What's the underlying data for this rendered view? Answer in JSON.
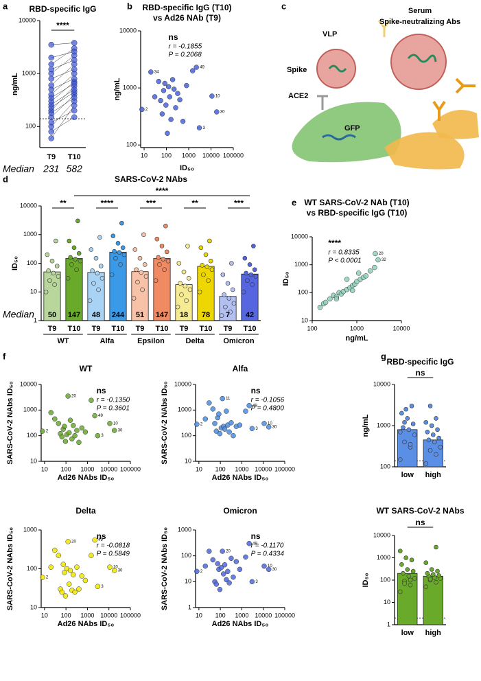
{
  "illustration": {
    "panel": "c",
    "serum": "Serum",
    "abs": "Spike-neutralizing Abs",
    "vlp": "VLP",
    "spike": "Spike",
    "ace2": "ACE2",
    "gfp": "GFP"
  },
  "chart_data": [
    {
      "panel": "a",
      "type": "paired",
      "title": "RBD-specific IgG",
      "ylabel": "ng/mL",
      "yscale": "log",
      "ylim": [
        40,
        10000
      ],
      "yticks": [
        100,
        1000,
        10000
      ],
      "categories": [
        "T9",
        "T10"
      ],
      "color": "#3d55d1",
      "threshold": 140,
      "values": [
        [
          60,
          80,
          100,
          120,
          150,
          180,
          200,
          230,
          260,
          300,
          350,
          400,
          500,
          600,
          800,
          1000,
          1200,
          1500,
          2000,
          3500
        ],
        [
          250,
          150,
          300,
          200,
          400,
          350,
          580,
          450,
          500,
          700,
          650,
          1000,
          800,
          1500,
          1200,
          2200,
          1800,
          3000,
          2600,
          3800
        ]
      ],
      "comparisons": [
        {
          "label": "****",
          "between": [
            0,
            1
          ]
        }
      ],
      "median_label": "Median",
      "medians": [
        231,
        582
      ]
    },
    {
      "panel": "b",
      "type": "scatter",
      "title": [
        "RBD-specific IgG (T10)",
        "vs Ad26 NAb (T9)"
      ],
      "xlabel": "ID₅₀",
      "ylabel": "ng/mL",
      "xscale": "log",
      "yscale": "log",
      "xlim": [
        7,
        100000
      ],
      "ylim": [
        90,
        10000
      ],
      "xticks": [
        10,
        100,
        1000,
        10000,
        100000
      ],
      "yticks": [
        100,
        1000,
        10000
      ],
      "color": "#4a63d8",
      "stat": "ns",
      "r_text": "r = -0.1855",
      "p_text": "P = 0.2068",
      "x": [
        8,
        20,
        30,
        45,
        55,
        65,
        75,
        85,
        95,
        110,
        125,
        140,
        160,
        190,
        220,
        260,
        320,
        400,
        550,
        800,
        1500,
        2200,
        3000,
        11000,
        18000
      ],
      "y": [
        420,
        1900,
        700,
        1300,
        600,
        350,
        900,
        1200,
        500,
        160,
        1050,
        700,
        280,
        1400,
        950,
        450,
        800,
        620,
        260,
        1100,
        2000,
        2300,
        200,
        720,
        380
      ],
      "labels": [
        "2",
        "34",
        null,
        null,
        null,
        null,
        null,
        null,
        null,
        null,
        null,
        null,
        null,
        null,
        null,
        null,
        null,
        null,
        null,
        null,
        null,
        "49",
        "3",
        "10",
        "30"
      ]
    },
    {
      "panel": "d",
      "type": "bar",
      "title": "SARS-CoV-2 NAbs",
      "ylabel": "ID₅₀",
      "yscale": "log",
      "ylim": [
        1,
        10000
      ],
      "yticks": [
        1,
        10,
        100,
        1000,
        10000
      ],
      "categories": [
        "T9",
        "T10",
        "T9",
        "T10",
        "T9",
        "T10",
        "T9",
        "T10",
        "T9",
        "T10"
      ],
      "groups": [
        "WT",
        "Alfa",
        "Epsilon",
        "Delta",
        "Omicron"
      ],
      "values": [
        50,
        147,
        48,
        244,
        51,
        147,
        18,
        78,
        7,
        42
      ],
      "colors": [
        "#b9d69c",
        "#6aaa2b",
        "#a9d3f5",
        "#3a9ae8",
        "#f7c2a7",
        "#f08a63",
        "#f6ea92",
        "#eed600",
        "#b3bff0",
        "#5566e0"
      ],
      "points": [
        [
          10,
          18,
          25,
          35,
          45,
          55,
          80,
          120,
          200,
          600
        ],
        [
          30,
          60,
          90,
          120,
          140,
          160,
          220,
          350,
          600,
          3000
        ],
        [
          5,
          12,
          20,
          30,
          45,
          55,
          80,
          150,
          300,
          800
        ],
        [
          40,
          90,
          150,
          200,
          240,
          260,
          350,
          500,
          900,
          2500
        ],
        [
          6,
          12,
          22,
          35,
          48,
          60,
          90,
          150,
          300,
          1000
        ],
        [
          25,
          60,
          90,
          120,
          140,
          160,
          250,
          400,
          700,
          2000
        ],
        [
          3,
          5,
          8,
          12,
          16,
          20,
          30,
          50,
          100,
          400
        ],
        [
          10,
          25,
          40,
          60,
          75,
          85,
          120,
          200,
          350,
          600
        ],
        [
          1.5,
          2,
          3,
          4,
          6,
          8,
          12,
          20,
          40,
          100
        ],
        [
          10,
          18,
          25,
          35,
          40,
          45,
          60,
          90,
          150,
          400
        ]
      ],
      "comparisons": [
        {
          "label": "**",
          "between": [
            0,
            1
          ]
        },
        {
          "label": "****",
          "between": [
            2,
            3
          ]
        },
        {
          "label": "***",
          "between": [
            4,
            5
          ]
        },
        {
          "label": "**",
          "between": [
            6,
            7
          ]
        },
        {
          "label": "***",
          "between": [
            8,
            9
          ]
        },
        {
          "label": "****",
          "between": [
            1,
            9
          ]
        }
      ],
      "median_label": "Median"
    },
    {
      "panel": "e",
      "type": "scatter",
      "title": [
        "WT SARS-CoV-2 NAb (T10)",
        "vs RBD-specific IgG (T10)"
      ],
      "xlabel": "ng/mL",
      "ylabel": "ID₅₀",
      "xscale": "log",
      "yscale": "log",
      "xlim": [
        100,
        10000
      ],
      "ylim": [
        10,
        10000
      ],
      "xticks": [
        100,
        1000,
        10000
      ],
      "yticks": [
        10,
        100,
        1000,
        10000
      ],
      "color": "#8fd0b8",
      "stat": "****",
      "r_text": "r = 0.8335",
      "p_text": "P < 0.0001",
      "x": [
        150,
        180,
        200,
        250,
        300,
        350,
        400,
        450,
        500,
        600,
        700,
        800,
        900,
        1000,
        1200,
        1400,
        1600,
        2000,
        2500,
        3000,
        800,
        600,
        350,
        1100,
        2600
      ],
      "y": [
        30,
        40,
        45,
        60,
        80,
        70,
        100,
        90,
        110,
        130,
        150,
        180,
        200,
        250,
        300,
        350,
        400,
        600,
        800,
        1500,
        120,
        300,
        60,
        500,
        2500
      ],
      "labels": [
        null,
        null,
        null,
        null,
        null,
        null,
        null,
        null,
        null,
        null,
        null,
        null,
        null,
        null,
        null,
        null,
        null,
        null,
        null,
        "32",
        null,
        null,
        null,
        null,
        "20"
      ]
    },
    {
      "panel": "f",
      "type": "scatter",
      "title": "WT",
      "xlabel": "Ad26 NAbs ID₅₀",
      "ylabel": "SARS-CoV-2 NAbs ID₅₀",
      "xscale": "log",
      "yscale": "log",
      "xlim": [
        7,
        100000
      ],
      "ylim": [
        10,
        10000
      ],
      "xticks": [
        10,
        100,
        1000,
        10000,
        100000
      ],
      "yticks": [
        10,
        100,
        1000,
        10000
      ],
      "color": "#6aa82e",
      "stat": "ns",
      "r_text": "r = -0.1350",
      "p_text": "P = 0.3601",
      "x": [
        8,
        20,
        30,
        45,
        55,
        65,
        75,
        85,
        95,
        110,
        125,
        140,
        160,
        190,
        220,
        260,
        320,
        400,
        550,
        800,
        1500,
        2200,
        3000,
        11000,
        18000
      ],
      "y": [
        150,
        800,
        450,
        300,
        120,
        90,
        180,
        230,
        60,
        110,
        3500,
        130,
        400,
        75,
        250,
        100,
        160,
        55,
        200,
        140,
        2400,
        600,
        100,
        300,
        160
      ],
      "labels": [
        "2",
        null,
        null,
        null,
        null,
        null,
        null,
        null,
        null,
        null,
        "20",
        null,
        null,
        null,
        null,
        null,
        null,
        null,
        null,
        null,
        null,
        "49",
        "3",
        "10",
        "30"
      ]
    },
    {
      "type": "scatter",
      "title": "Alfa",
      "xlabel": "Ad26 NAbs ID₅₀",
      "ylabel": "SARS-CoV-2 NAbs ID₅₀",
      "xscale": "log",
      "yscale": "log",
      "xlim": [
        7,
        100000
      ],
      "ylim": [
        10,
        10000
      ],
      "xticks": [
        10,
        100,
        1000,
        10000,
        100000
      ],
      "yticks": [
        10,
        100,
        1000,
        10000
      ],
      "color": "#4a8de0",
      "stat": "ns",
      "r_text": "r = -0.1056",
      "p_text": "P = 0.4800",
      "x": [
        8,
        20,
        30,
        45,
        55,
        65,
        75,
        85,
        95,
        110,
        125,
        140,
        160,
        190,
        220,
        260,
        320,
        400,
        550,
        800,
        1500,
        2200,
        3000,
        11000,
        18000
      ],
      "y": [
        280,
        450,
        1900,
        1100,
        300,
        150,
        500,
        700,
        120,
        200,
        2800,
        230,
        180,
        900,
        260,
        140,
        320,
        100,
        230,
        260,
        900,
        1500,
        190,
        300,
        220
      ],
      "labels": [
        "2",
        null,
        null,
        null,
        null,
        null,
        null,
        null,
        null,
        null,
        "11",
        null,
        null,
        null,
        null,
        null,
        null,
        null,
        null,
        null,
        null,
        "49",
        "3",
        "10",
        "30"
      ]
    },
    {
      "type": "scatter",
      "title": "Delta",
      "xlabel": "Ad26 NAbs ID₅₀",
      "ylabel": "SARS-CoV-2 NAbs ID₅₀",
      "xscale": "log",
      "yscale": "log",
      "xlim": [
        7,
        100000
      ],
      "ylim": [
        10,
        1000
      ],
      "xticks": [
        10,
        100,
        1000,
        10000,
        100000
      ],
      "yticks": [
        10,
        100,
        1000
      ],
      "color": "#f0e600",
      "stat": "ns",
      "r_text": "r = -0.0818",
      "p_text": "P = 0.5849",
      "x": [
        8,
        20,
        30,
        45,
        55,
        65,
        75,
        85,
        95,
        110,
        125,
        140,
        160,
        190,
        220,
        260,
        320,
        400,
        550,
        800,
        1500,
        2200,
        3000,
        11000,
        18000
      ],
      "y": [
        60,
        110,
        300,
        220,
        30,
        25,
        130,
        80,
        20,
        100,
        500,
        40,
        90,
        28,
        70,
        25,
        110,
        30,
        65,
        50,
        220,
        550,
        35,
        110,
        90
      ],
      "labels": [
        "2",
        null,
        null,
        null,
        null,
        null,
        null,
        null,
        null,
        null,
        "20",
        null,
        null,
        null,
        null,
        null,
        null,
        null,
        null,
        null,
        null,
        "49",
        "3",
        "10",
        "30"
      ]
    },
    {
      "type": "scatter",
      "title": "Omicron",
      "xlabel": "Ad26 NAbs ID₅₀",
      "ylabel": "SARS-CoV-2 NAbs ID₅₀",
      "xscale": "log",
      "yscale": "log",
      "xlim": [
        7,
        100000
      ],
      "ylim": [
        1,
        1000
      ],
      "xticks": [
        10,
        100,
        1000,
        10000,
        100000
      ],
      "yticks": [
        1,
        10,
        100,
        1000
      ],
      "color": "#4f67d9",
      "stat": "ns",
      "r_text": "r = -0.1170",
      "p_text": "P = 0.4334",
      "x": [
        8,
        20,
        30,
        45,
        55,
        65,
        75,
        85,
        95,
        110,
        125,
        140,
        160,
        190,
        220,
        260,
        320,
        400,
        550,
        800,
        1500,
        2200,
        3000,
        11000,
        18000
      ],
      "y": [
        25,
        40,
        150,
        70,
        10,
        8,
        50,
        30,
        5,
        35,
        150,
        20,
        45,
        12,
        25,
        9,
        80,
        15,
        60,
        30,
        90,
        300,
        10,
        40,
        30
      ],
      "labels": [
        "2",
        null,
        null,
        null,
        null,
        null,
        null,
        null,
        null,
        null,
        "20",
        null,
        null,
        null,
        null,
        null,
        null,
        null,
        null,
        null,
        null,
        "49",
        "3",
        "10",
        "30"
      ]
    },
    {
      "panel": "g",
      "type": "bar",
      "title": "RBD-specific IgG",
      "ylabel": "ng/mL",
      "yscale": "log",
      "ylim": [
        100,
        10000
      ],
      "yticks": [
        100,
        1000,
        10000
      ],
      "categories": [
        "low",
        "high"
      ],
      "values": [
        800,
        450
      ],
      "colors": [
        "#5b8fe6",
        "#5b8fe6"
      ],
      "threshold": 140,
      "points": [
        [
          150,
          300,
          400,
          600,
          800,
          900,
          1100,
          1500,
          2000,
          3000,
          2500,
          700,
          350,
          1200
        ],
        [
          120,
          200,
          250,
          300,
          400,
          450,
          500,
          600,
          700,
          800,
          1000,
          1200,
          1500,
          3000
        ]
      ],
      "comparisons": [
        {
          "label": "ns",
          "between": [
            0,
            1
          ]
        }
      ]
    },
    {
      "type": "bar",
      "title": "WT SARS-CoV-2 NAbs",
      "ylabel": "ID₅₀",
      "yscale": "log",
      "ylim": [
        1,
        10000
      ],
      "yticks": [
        1,
        10,
        100,
        1000,
        10000
      ],
      "categories": [
        "low",
        "high"
      ],
      "values": [
        200,
        150
      ],
      "colors": [
        "#6aaa2b",
        "#6aaa2b"
      ],
      "threshold": 2,
      "points": [
        [
          30,
          60,
          90,
          120,
          150,
          200,
          250,
          300,
          500,
          800,
          1000,
          2000,
          100,
          70
        ],
        [
          50,
          80,
          100,
          120,
          130,
          150,
          160,
          180,
          200,
          250,
          300,
          600,
          3000,
          110
        ]
      ],
      "comparisons": [
        {
          "label": "ns",
          "between": [
            0,
            1
          ]
        }
      ]
    }
  ]
}
